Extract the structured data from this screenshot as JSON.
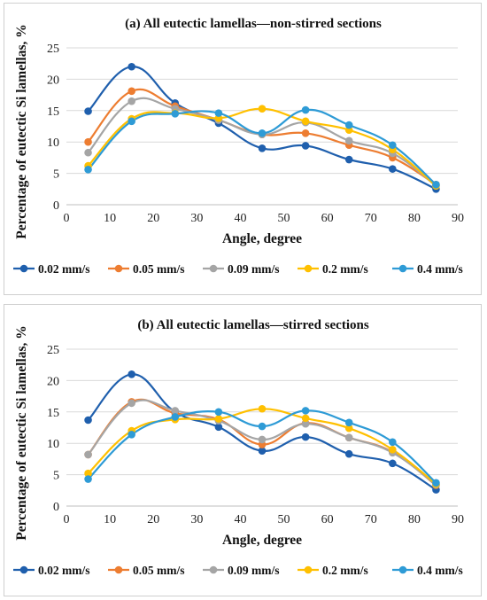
{
  "chart_data": [
    {
      "type": "line",
      "title": "(a) All eutectic lamellas—non-stirred sections",
      "xlabel": "Angle, degree",
      "ylabel": "Percentage of eutectic Si lamellas, %",
      "xlim": [
        0,
        90
      ],
      "ylim": [
        0,
        25
      ],
      "xticks": [
        "0",
        "10",
        "20",
        "30",
        "40",
        "50",
        "60",
        "70",
        "80",
        "90"
      ],
      "yticks": [
        "0",
        "5",
        "10",
        "15",
        "20",
        "25"
      ],
      "grid": "horizontal",
      "legend": "bottom",
      "x": [
        5,
        15,
        25,
        35,
        45,
        55,
        65,
        75,
        85
      ],
      "series": [
        {
          "name": "0.02 mm/s",
          "color": "#1f5fad",
          "values": [
            14.9,
            22.0,
            16.2,
            13.0,
            9.0,
            9.4,
            7.2,
            5.7,
            2.5
          ]
        },
        {
          "name": "0.05 mm/s",
          "color": "#ed7d31",
          "values": [
            10.0,
            18.1,
            15.7,
            13.5,
            11.2,
            11.4,
            9.5,
            7.5,
            3.2
          ]
        },
        {
          "name": "0.09 mm/s",
          "color": "#a5a5a5",
          "values": [
            8.3,
            16.5,
            15.3,
            13.5,
            11.2,
            13.1,
            10.2,
            8.2,
            3.0
          ]
        },
        {
          "name": "0.2 mm/s",
          "color": "#ffc000",
          "values": [
            6.2,
            13.7,
            14.6,
            13.8,
            15.3,
            13.3,
            11.9,
            8.8,
            3.0
          ]
        },
        {
          "name": "0.4 mm/s",
          "color": "#2e9bd6",
          "values": [
            5.6,
            13.3,
            14.5,
            14.6,
            11.4,
            15.1,
            12.7,
            9.5,
            3.2
          ]
        }
      ]
    },
    {
      "type": "line",
      "title": "(b) All eutectic lamellas—stirred sections",
      "xlabel": "Angle, degree",
      "ylabel": "Percentage of eutectic Si lamellas, %",
      "xlim": [
        0,
        90
      ],
      "ylim": [
        0,
        25
      ],
      "xticks": [
        "0",
        "10",
        "20",
        "30",
        "40",
        "50",
        "60",
        "70",
        "80",
        "90"
      ],
      "yticks": [
        "0",
        "5",
        "10",
        "15",
        "20",
        "25"
      ],
      "grid": "horizontal",
      "legend": "bottom",
      "x": [
        5,
        15,
        25,
        35,
        45,
        55,
        65,
        75,
        85
      ],
      "series": [
        {
          "name": "0.02 mm/s",
          "color": "#1f5fad",
          "values": [
            13.7,
            21.0,
            15.0,
            12.6,
            8.8,
            11.0,
            8.3,
            6.8,
            2.6
          ]
        },
        {
          "name": "0.05 mm/s",
          "color": "#ed7d31",
          "values": [
            8.2,
            16.6,
            14.8,
            13.8,
            9.8,
            13.2,
            10.9,
            8.6,
            3.3
          ]
        },
        {
          "name": "0.09 mm/s",
          "color": "#a5a5a5",
          "values": [
            8.2,
            16.4,
            15.2,
            13.6,
            10.6,
            13.1,
            10.9,
            8.5,
            3.4
          ]
        },
        {
          "name": "0.2 mm/s",
          "color": "#ffc000",
          "values": [
            5.2,
            12.0,
            13.8,
            13.9,
            15.5,
            14.0,
            12.4,
            9.0,
            3.5
          ]
        },
        {
          "name": "0.4 mm/s",
          "color": "#2e9bd6",
          "values": [
            4.3,
            11.4,
            14.2,
            15.0,
            12.7,
            15.2,
            13.3,
            10.2,
            3.7
          ]
        }
      ]
    }
  ]
}
